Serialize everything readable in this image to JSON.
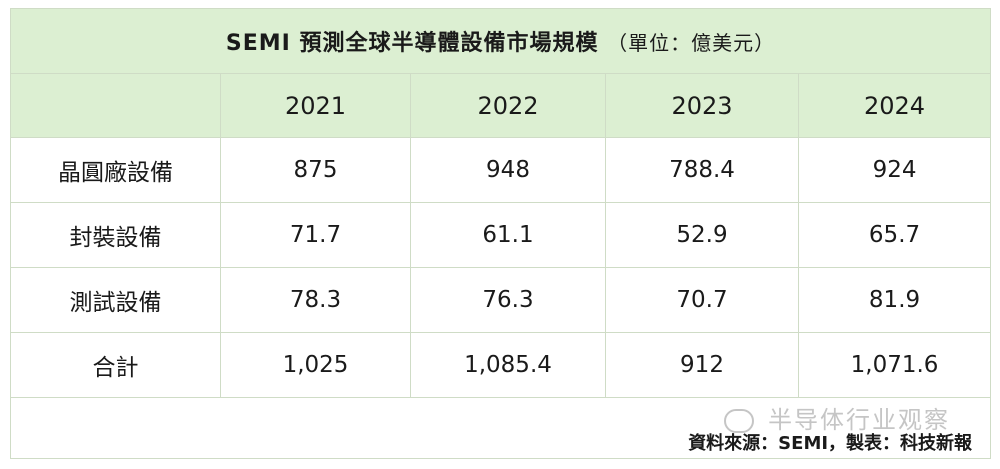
{
  "table": {
    "title": "SEMI 預測全球半導體設備市場規模",
    "unit": "（單位：億美元）",
    "corner": "",
    "years": [
      "2021",
      "2022",
      "2023",
      "2024"
    ],
    "rows": [
      {
        "label": "晶圓廠設備",
        "values": [
          "875",
          "948",
          "788.4",
          "924"
        ]
      },
      {
        "label": "封裝設備",
        "values": [
          "71.7",
          "61.1",
          "52.9",
          "65.7"
        ]
      },
      {
        "label": "測試設備",
        "values": [
          "78.3",
          "76.3",
          "70.7",
          "81.9"
        ]
      },
      {
        "label": "合計",
        "values": [
          "1,025",
          "1,085.4",
          "912",
          "1,071.6"
        ]
      }
    ],
    "source": "資料來源：SEMI，製表：科技新報"
  },
  "watermark": {
    "text": "半导体行业观察",
    "icon": "wechat-icon"
  },
  "colors": {
    "header_bg": "#dcefd2",
    "border": "#cfdcc6"
  }
}
